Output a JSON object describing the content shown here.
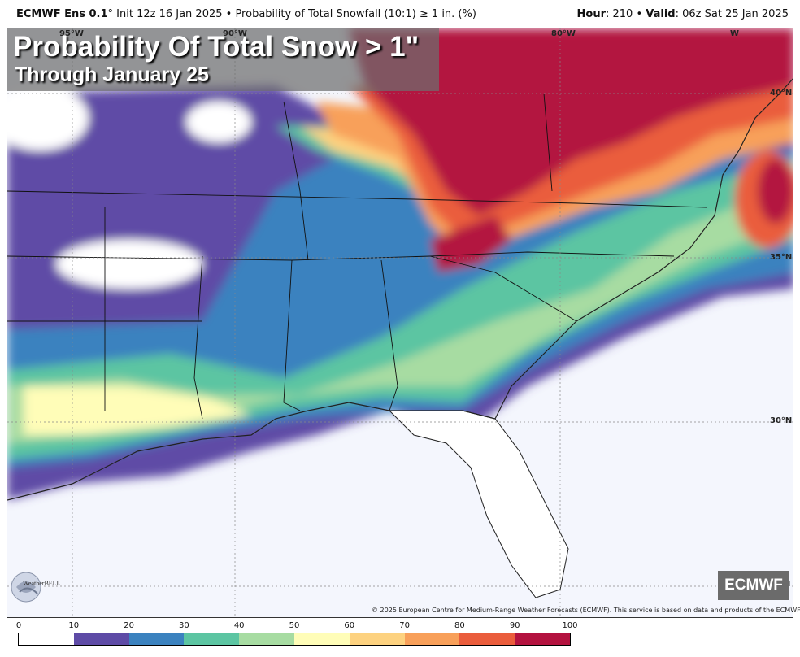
{
  "header": {
    "model": "ECMWF Ens 0.1",
    "degree": "°",
    "info": " Init 12z 16 Jan 2025 • Probability of Total Snowfall (10:1) ≥ 1 in. (%)",
    "hour_label": "Hour",
    "hour_value": ": 210 • ",
    "valid_label": "Valid",
    "valid_value": ": 06z Sat 25 Jan 2025"
  },
  "title": {
    "main": "Probability Of Total Snow > 1\"",
    "sub": "Through January 25"
  },
  "latitudes": [
    "40°N",
    "35°N",
    "30°N",
    "N"
  ],
  "longitudes": [
    "95°W",
    "90°W",
    "80°W",
    "W"
  ],
  "badge": "ECMWF",
  "logo_text": "WeatherBELL",
  "copyright": "© 2025 European Centre for Medium-Range Weather Forecasts (ECMWF). This service is based on data and products of the ECMWF.",
  "colorbar": {
    "ticks": [
      "0",
      "10",
      "20",
      "30",
      "40",
      "50",
      "60",
      "70",
      "80",
      "90",
      "100"
    ],
    "colors": [
      "#ffffff",
      "#5e4ba6",
      "#3b82bf",
      "#5cc5a2",
      "#a7dca2",
      "#fffdb8",
      "#fdd280",
      "#f8a05a",
      "#ea5d3c",
      "#b3123f"
    ]
  }
}
